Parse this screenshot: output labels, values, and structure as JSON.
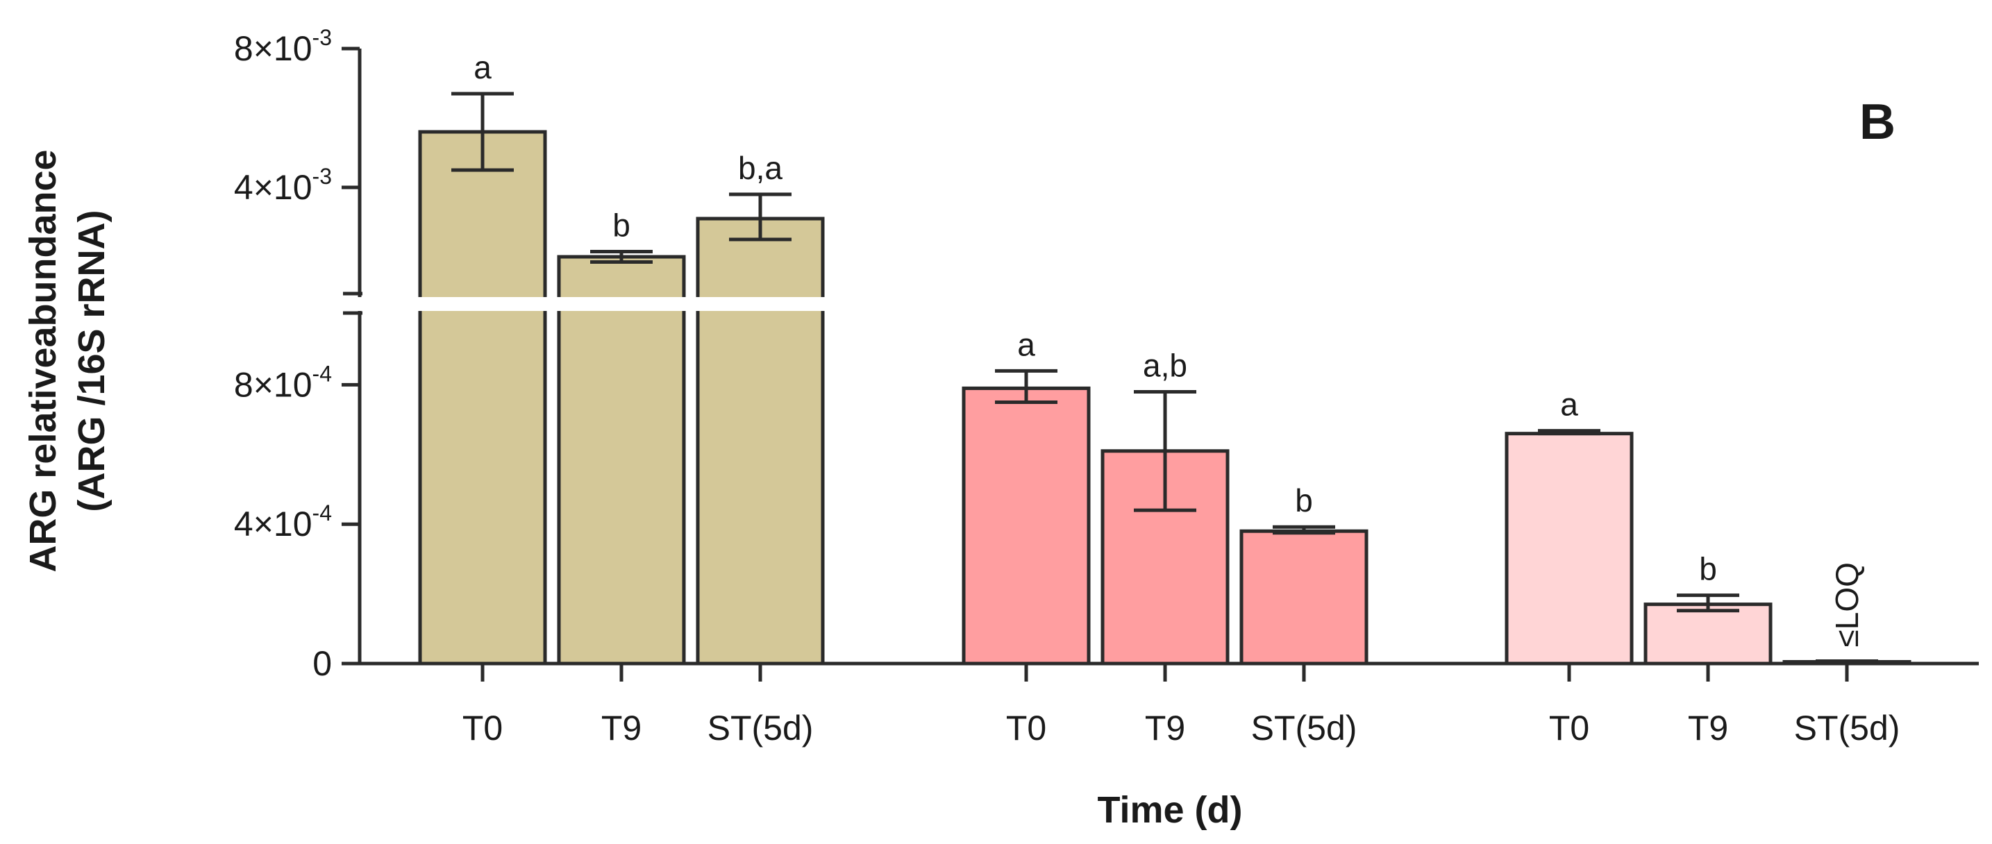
{
  "chart_data": {
    "type": "bar",
    "panel_label": "B",
    "ylabel_line1": "ARG relativeabundance",
    "ylabel_line2": "(ARG /16S rRNA)",
    "xlabel": "Time (d)",
    "axis_break": {
      "lower_range": [
        0,
        0.001
      ],
      "upper_range": [
        0.001,
        0.008
      ]
    },
    "y_ticks": [
      {
        "value": 0,
        "label": "0",
        "exp": ""
      },
      {
        "value": 0.0004,
        "label": "4×10",
        "exp": "-4"
      },
      {
        "value": 0.0008,
        "label": "8×10",
        "exp": "-4"
      },
      {
        "value": 0.004,
        "label": "4×10",
        "exp": "-3"
      },
      {
        "value": 0.008,
        "label": "8×10",
        "exp": "-3"
      }
    ],
    "groups": [
      {
        "color": "#d4c898",
        "bars": [
          {
            "category": "T0",
            "value": 0.0056,
            "err_low": 0.0045,
            "err_high": 0.0067,
            "letter": "a"
          },
          {
            "category": "T9",
            "value": 0.002,
            "err_low": 0.00185,
            "err_high": 0.00215,
            "letter": "b"
          },
          {
            "category": "ST(5d)",
            "value": 0.0031,
            "err_low": 0.0025,
            "err_high": 0.0038,
            "letter": "b,a"
          }
        ]
      },
      {
        "color": "#ff9ea0",
        "bars": [
          {
            "category": "T0",
            "value": 0.00079,
            "err_low": 0.00075,
            "err_high": 0.00084,
            "letter": "a"
          },
          {
            "category": "T9",
            "value": 0.00061,
            "err_low": 0.00044,
            "err_high": 0.00078,
            "letter": "a,b"
          },
          {
            "category": "ST(5d)",
            "value": 0.00038,
            "err_low": 0.000375,
            "err_high": 0.000392,
            "letter": "b"
          }
        ]
      },
      {
        "color": "#ffd5d6",
        "bars": [
          {
            "category": "T0",
            "value": 0.00066,
            "err_low": 0.00066,
            "err_high": 0.000668,
            "letter": "a"
          },
          {
            "category": "T9",
            "value": 0.00017,
            "err_low": 0.000152,
            "err_high": 0.000196,
            "letter": "b"
          },
          {
            "category": "ST(5d)",
            "value": 5e-06,
            "err_low": 3e-06,
            "err_high": 7e-06,
            "letter": "≤LOQ"
          }
        ]
      }
    ]
  }
}
